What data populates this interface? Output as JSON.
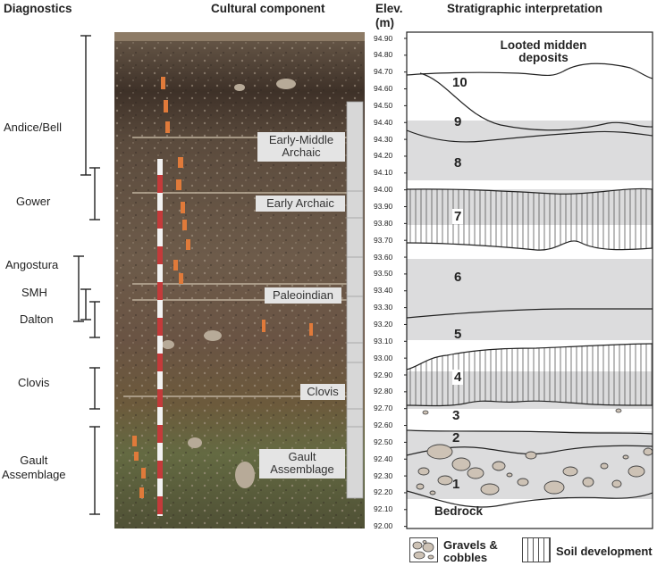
{
  "headers": {
    "diagnostics": "Diagnostics",
    "cultural": "Cultural component",
    "elev_line1": "Elev.",
    "elev_line2": "(m)",
    "strat": "Stratigraphic interpretation"
  },
  "diagnostics": {
    "andice_bell": "Andice/Bell",
    "gower": "Gower",
    "angostura": "Angostura",
    "smh": "SMH",
    "dalton": "Dalton",
    "clovis": "Clovis",
    "gault_line1": "Gault",
    "gault_line2": "Assemblage"
  },
  "cultural": {
    "early_middle_line1": "Early-Middle",
    "early_middle_line2": "Archaic",
    "early_archaic": "Early Archaic",
    "paleoindian": "Paleoindian",
    "clovis": "Clovis",
    "gault_line1": "Gault",
    "gault_line2": "Assemblage"
  },
  "elevation_ticks": [
    "94.90",
    "94.80",
    "94.70",
    "94.60",
    "94.50",
    "94.40",
    "94.30",
    "94.20",
    "94.10",
    "94.00",
    "93.90",
    "93.80",
    "93.70",
    "93.60",
    "93.50",
    "93.40",
    "93.30",
    "93.20",
    "93.10",
    "93.00",
    "92.90",
    "92.80",
    "92.70",
    "92.60",
    "92.50",
    "92.40",
    "92.30",
    "92.20",
    "92.10",
    "92.00"
  ],
  "strat": {
    "looted_line1": "Looted midden",
    "looted_line2": "deposits",
    "bedrock": "Bedrock",
    "layers": [
      "10",
      "9",
      "8",
      "7",
      "6",
      "5",
      "4",
      "3",
      "2",
      "1"
    ]
  },
  "legend": {
    "gravels_line1": "Gravels &",
    "gravels_line2": "cobbles",
    "soil": "Soil development"
  },
  "colors": {
    "band_gray": "#dcdcdd",
    "pebble": "#cdc2b5",
    "label_bg": "#e4e4e4",
    "photo_top": "#5a4a3c",
    "photo_bottom": "#6b6a45"
  }
}
